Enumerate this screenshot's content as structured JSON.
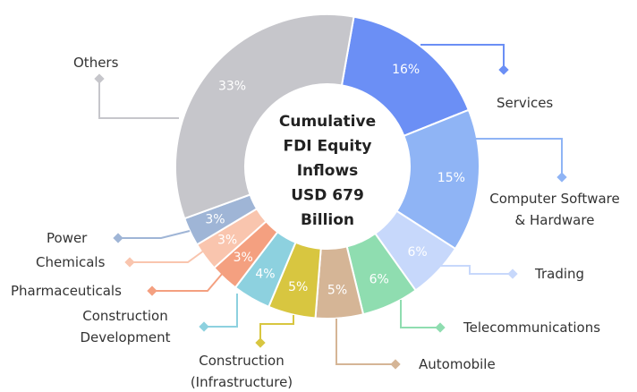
{
  "chart_data": {
    "type": "donut",
    "center_label": [
      "Cumulative",
      "FDI Equity",
      "Inflows",
      "USD 679",
      "Billion"
    ],
    "categories": [
      "Services",
      "Computer Software\n& Hardware",
      "Trading",
      "Telecommunications",
      "Automobile",
      "Construction\n(Infrastructure)",
      "Construction\nDevelopment",
      "Pharmaceuticals",
      "Chemicals",
      "Power",
      "Others"
    ],
    "values": [
      16,
      15,
      6,
      6,
      5,
      5,
      4,
      3,
      3,
      3,
      33
    ],
    "value_labels": [
      "16%",
      "15%",
      "6%",
      "6%",
      "5%",
      "5%",
      "4%",
      "3%",
      "3%",
      "3%",
      "33%"
    ],
    "colors": [
      "#6b8ff5",
      "#8fb4f5",
      "#c7d8fb",
      "#8fddb0",
      "#d5b596",
      "#d8c640",
      "#8dd1df",
      "#f4a080",
      "#f9c5ae",
      "#9fb5d6",
      "#c6c6cb"
    ]
  }
}
